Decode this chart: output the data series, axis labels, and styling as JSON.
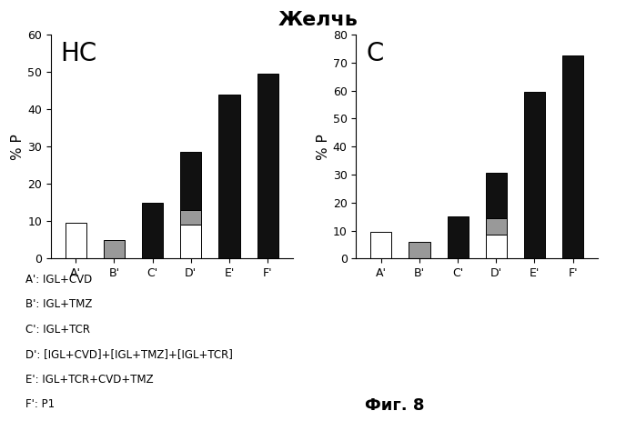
{
  "title": "Желчь",
  "subtitle_fig": "Фиг. 8",
  "left_label": "НС",
  "right_label": "С",
  "ylabel": "% Р",
  "categories": [
    "A'",
    "B'",
    "C'",
    "D'",
    "E'",
    "F'"
  ],
  "left_ylim": [
    0,
    60
  ],
  "right_ylim": [
    0,
    80
  ],
  "left_yticks": [
    0,
    10,
    20,
    30,
    40,
    50,
    60
  ],
  "right_yticks": [
    0,
    10,
    20,
    30,
    40,
    50,
    60,
    70,
    80
  ],
  "left_bars": {
    "A_white": 9.5,
    "B_gray": 5.0,
    "C_black": 15.0,
    "D_white": 9.0,
    "D_gray": 4.0,
    "D_black": 15.5,
    "E_black": 44.0,
    "F_black": 49.5
  },
  "right_bars": {
    "A_white": 9.5,
    "B_gray": 6.0,
    "C_black": 15.0,
    "D_white": 8.5,
    "D_gray": 6.0,
    "D_black": 16.0,
    "E_black": 59.5,
    "F_black": 72.5
  },
  "legend_lines": [
    "A': IGL+CVD",
    "B': IGL+TMZ",
    "C': IGL+TCR",
    "D': [IGL+CVD]+[IGL+TMZ]+[IGL+TCR]",
    "E': IGL+TCR+CVD+TMZ",
    "F': P1"
  ],
  "color_white": "#ffffff",
  "color_lightgray": "#999999",
  "color_black": "#111111",
  "color_bg": "#ffffff",
  "title_fontsize": 16,
  "sublabel_fontsize": 20,
  "tick_fontsize": 9,
  "legend_fontsize": 8.5,
  "bar_width": 0.55
}
